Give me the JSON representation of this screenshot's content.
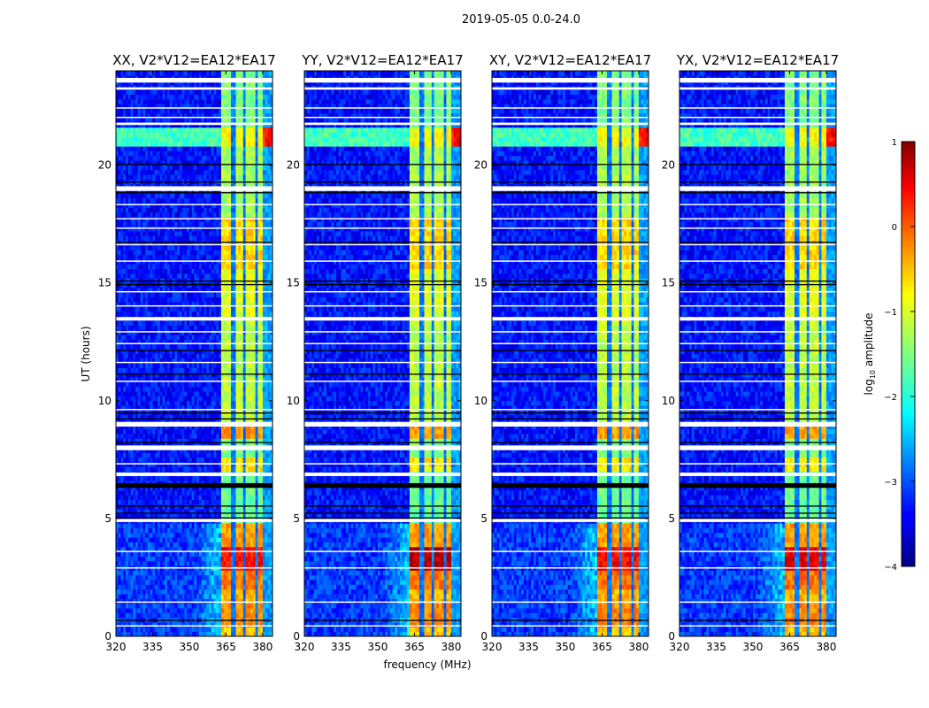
{
  "chart_data": {
    "type": "heatmap",
    "title": "2019-05-05 0.0-24.0",
    "xlabel": "frequency (MHz)",
    "ylabel": "UT (hours)",
    "xlim": [
      320,
      384
    ],
    "ylim": [
      0,
      24
    ],
    "xticks": [
      "320",
      "335",
      "350",
      "365",
      "380"
    ],
    "yticks": [
      "0",
      "5",
      "10",
      "15",
      "20"
    ],
    "colorbar": {
      "label": "log10 amplitude",
      "label_main": "log",
      "label_sub": "10",
      "label_rest": " amplitude",
      "range": [
        -4,
        1
      ],
      "ticks": [
        "1",
        "0",
        "−1",
        "−2",
        "−3",
        "−4"
      ],
      "colormap": "jet"
    },
    "background_level": -3.3,
    "band": {
      "start_mhz": 363.5,
      "end_mhz": 380,
      "gaps_mhz": [
        368,
        372.8,
        377.6
      ],
      "upper_edge_level": -2.6
    },
    "band_segments": [
      {
        "t0": 0.0,
        "t1": 0.5,
        "level": -0.6
      },
      {
        "t0": 0.5,
        "t1": 1.5,
        "level": -0.3
      },
      {
        "t0": 1.5,
        "t1": 2.0,
        "level": -0.5
      },
      {
        "t0": 2.0,
        "t1": 2.9,
        "level": -0.2
      },
      {
        "t0": 2.9,
        "t1": 3.8,
        "level": 0.2,
        "hot": true
      },
      {
        "t0": 3.8,
        "t1": 4.9,
        "level": -0.4
      },
      {
        "t0": 4.9,
        "t1": 7.0,
        "level": -1.6
      },
      {
        "t0": 7.0,
        "t1": 7.6,
        "level": -0.8
      },
      {
        "t0": 7.6,
        "t1": 8.5,
        "level": -1.5
      },
      {
        "t0": 8.5,
        "t1": 9.0,
        "level": -0.4
      },
      {
        "t0": 9.0,
        "t1": 13.4,
        "level": -1.2
      },
      {
        "t0": 13.4,
        "t1": 15.5,
        "level": -1.0
      },
      {
        "t0": 15.5,
        "t1": 17.8,
        "level": -0.7
      },
      {
        "t0": 17.8,
        "t1": 20.7,
        "level": -1.3
      },
      {
        "t0": 20.7,
        "t1": 21.6,
        "level": -0.9
      },
      {
        "t0": 21.6,
        "t1": 24.0,
        "level": -1.5
      }
    ],
    "rfi_band": {
      "t0": 20.7,
      "t1": 21.6,
      "level": -1.8,
      "right_edge_level": 0.5
    },
    "flagged_white_hours": [
      [
        23.5,
        23.7
      ],
      [
        23.2,
        23.3
      ],
      [
        22.4,
        22.45
      ],
      [
        22.0,
        22.05
      ],
      [
        21.7,
        21.8
      ],
      [
        18.9,
        19.1
      ],
      [
        18.3,
        18.35
      ],
      [
        17.7,
        17.75
      ],
      [
        17.3,
        17.35
      ],
      [
        16.6,
        16.65
      ],
      [
        15.9,
        15.95
      ],
      [
        14.6,
        14.65
      ],
      [
        14.0,
        14.05
      ],
      [
        13.4,
        13.55
      ],
      [
        12.9,
        12.95
      ],
      [
        12.4,
        12.45
      ],
      [
        11.6,
        11.65
      ],
      [
        10.8,
        10.85
      ],
      [
        9.6,
        9.65
      ],
      [
        8.9,
        9.1
      ],
      [
        7.9,
        8.1
      ],
      [
        7.3,
        7.35
      ],
      [
        6.8,
        6.95
      ],
      [
        4.85,
        4.98
      ],
      [
        3.58,
        3.63
      ],
      [
        2.88,
        2.93
      ],
      [
        1.43,
        1.48
      ],
      [
        0.43,
        0.47
      ]
    ],
    "flagged_black_hours": [
      [
        20.0,
        20.05
      ],
      [
        19.25,
        19.3
      ],
      [
        18.8,
        18.85
      ],
      [
        16.7,
        16.75
      ],
      [
        15.05,
        15.1
      ],
      [
        14.9,
        14.95
      ],
      [
        12.1,
        12.15
      ],
      [
        11.1,
        11.15
      ],
      [
        9.45,
        9.5
      ],
      [
        9.2,
        9.25
      ],
      [
        8.2,
        8.25
      ],
      [
        6.3,
        6.5
      ],
      [
        5.5,
        5.55
      ],
      [
        5.2,
        5.25
      ],
      [
        5.0,
        5.05
      ],
      [
        0.65,
        0.7
      ]
    ],
    "panels": [
      {
        "title": "XX, V2*V12=EA12*EA17",
        "hot_level": 0.3
      },
      {
        "title": "YY, V2*V12=EA12*EA17",
        "hot_level": 0.7
      },
      {
        "title": "XY, V2*V12=EA12*EA17",
        "hot_level": 0.35
      },
      {
        "title": "YX, V2*V12=EA12*EA17",
        "hot_level": 0.5
      }
    ]
  }
}
